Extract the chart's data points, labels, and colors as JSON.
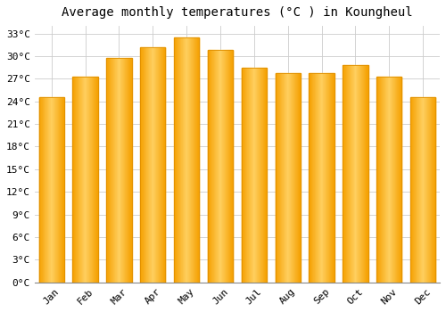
{
  "title": "Average monthly temperatures (°C ) in Koungheul",
  "months": [
    "Jan",
    "Feb",
    "Mar",
    "Apr",
    "May",
    "Jun",
    "Jul",
    "Aug",
    "Sep",
    "Oct",
    "Nov",
    "Dec"
  ],
  "values": [
    24.5,
    27.3,
    29.7,
    31.2,
    32.5,
    30.8,
    28.5,
    27.8,
    27.8,
    28.8,
    27.3,
    24.5
  ],
  "bar_color_left": "#F5A000",
  "bar_color_mid": "#FFD060",
  "bar_color_right": "#F5A000",
  "bar_edge_color": "#E09000",
  "background_color": "#FFFFFF",
  "plot_bg_color": "#FFFFFF",
  "grid_color": "#CCCCCC",
  "ylim": [
    0,
    34
  ],
  "yticks": [
    0,
    3,
    6,
    9,
    12,
    15,
    18,
    21,
    24,
    27,
    30,
    33
  ],
  "title_fontsize": 10,
  "tick_fontsize": 8,
  "bar_width": 0.75
}
